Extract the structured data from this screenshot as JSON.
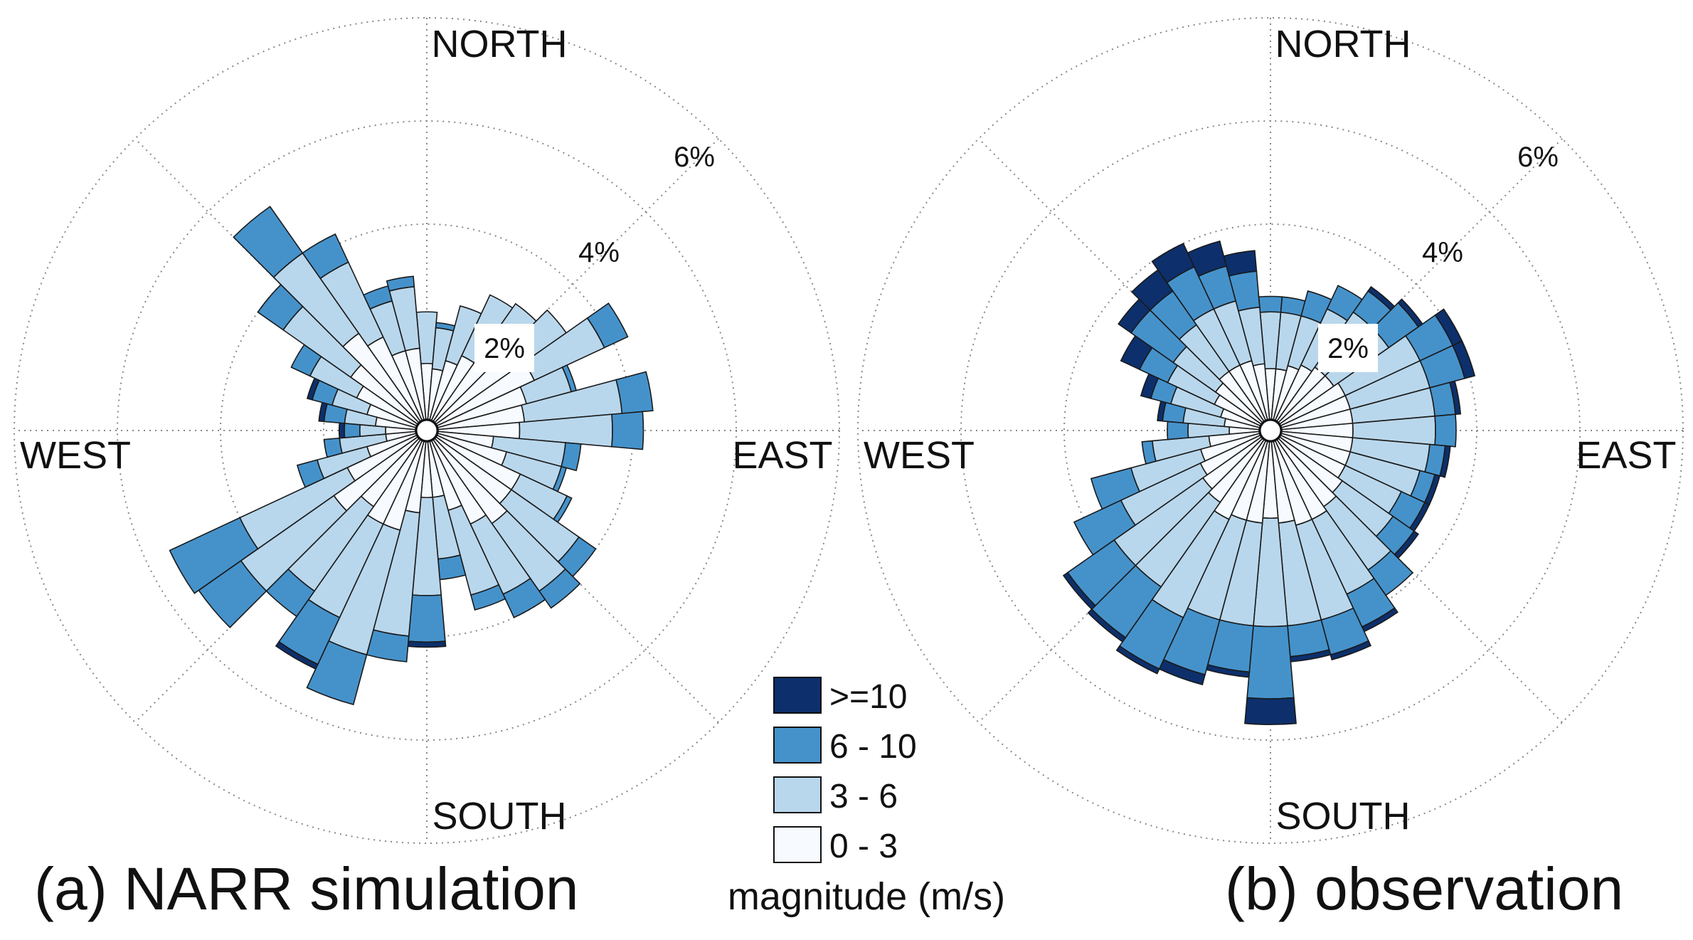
{
  "colors": {
    "bins": [
      "#f7fbff",
      "#b9d7ec",
      "#4592cb",
      "#0d2f6b"
    ],
    "label_box": "#ffffff"
  },
  "legend": {
    "title": "magnitude (m/s)",
    "items": [
      {
        "label": ">=10",
        "color": "#0d2f6b"
      },
      {
        "label": "6 - 10",
        "color": "#4592cb"
      },
      {
        "label": "3 - 6",
        "color": "#b9d7ec"
      },
      {
        "label": "0 - 3",
        "color": "#f7fbff"
      }
    ]
  },
  "chart_data": [
    {
      "type": "windrose",
      "title": "(a) NARR simulation",
      "directions": [
        "NORTH",
        "EAST",
        "SOUTH",
        "WEST"
      ],
      "rings": [
        2,
        4,
        6,
        8
      ],
      "ring_labels": [
        "2%",
        "4%",
        "6%"
      ],
      "max_radius_percent": 8,
      "sector_width_deg": 10,
      "sector_angles_deg": [
        0,
        10,
        20,
        30,
        40,
        50,
        60,
        70,
        80,
        90,
        100,
        110,
        120,
        130,
        140,
        150,
        160,
        170,
        180,
        190,
        200,
        210,
        220,
        230,
        240,
        250,
        260,
        270,
        280,
        290,
        300,
        310,
        320,
        330,
        340,
        350
      ],
      "bin_labels": [
        "0 - 3",
        "3 - 6",
        "6 - 10",
        ">=10"
      ],
      "cumulative_percent": [
        [
          1.3,
          2.3,
          2.3,
          2.3
        ],
        [
          1.2,
          2.0,
          2.1,
          2.1
        ],
        [
          1.4,
          2.5,
          2.5,
          2.5
        ],
        [
          1.6,
          2.9,
          2.9,
          2.9
        ],
        [
          1.8,
          3.0,
          3.0,
          3.0
        ],
        [
          2.2,
          3.3,
          3.3,
          3.3
        ],
        [
          2.3,
          3.8,
          4.3,
          4.3
        ],
        [
          2.0,
          2.9,
          3.0,
          3.0
        ],
        [
          1.9,
          3.8,
          4.4,
          4.4
        ],
        [
          1.8,
          3.6,
          4.2,
          4.2
        ],
        [
          1.3,
          2.7,
          3.0,
          3.0
        ],
        [
          1.6,
          2.7,
          2.8,
          2.8
        ],
        [
          2.0,
          3.0,
          3.1,
          3.1
        ],
        [
          2.0,
          3.6,
          4.0,
          4.0
        ],
        [
          2.2,
          3.8,
          4.2,
          4.2
        ],
        [
          2.0,
          3.5,
          4.0,
          4.0
        ],
        [
          1.6,
          3.3,
          3.6,
          3.6
        ],
        [
          1.3,
          2.5,
          2.9,
          2.9
        ],
        [
          1.3,
          3.2,
          4.1,
          4.2
        ],
        [
          1.6,
          4.0,
          4.5,
          4.5
        ],
        [
          2.0,
          4.5,
          5.5,
          5.5
        ],
        [
          2.0,
          4.0,
          5.0,
          5.1
        ],
        [
          1.8,
          3.8,
          4.4,
          4.4
        ],
        [
          2.2,
          4.4,
          5.4,
          5.4
        ],
        [
          1.7,
          4.0,
          5.5,
          5.5
        ],
        [
          1.2,
          2.2,
          2.6,
          2.6
        ],
        [
          0.8,
          1.7,
          2.0,
          2.0
        ],
        [
          0.8,
          1.3,
          1.6,
          1.7
        ],
        [
          1.0,
          1.6,
          2.0,
          2.1
        ],
        [
          1.2,
          1.9,
          2.3,
          2.4
        ],
        [
          1.5,
          2.5,
          2.9,
          2.9
        ],
        [
          1.8,
          3.4,
          4.0,
          4.0
        ],
        [
          2.3,
          4.2,
          5.3,
          5.3
        ],
        [
          2.0,
          3.6,
          4.2,
          4.2
        ],
        [
          1.6,
          2.6,
          2.9,
          2.9
        ],
        [
          1.6,
          2.8,
          3.0,
          3.0
        ]
      ]
    },
    {
      "type": "windrose",
      "title": "(b) observation",
      "directions": [
        "NORTH",
        "EAST",
        "SOUTH",
        "WEST"
      ],
      "rings": [
        2,
        4,
        6,
        8
      ],
      "ring_labels": [
        "2%",
        "4%",
        "6%"
      ],
      "max_radius_percent": 8,
      "sector_width_deg": 10,
      "sector_angles_deg": [
        0,
        10,
        20,
        30,
        40,
        50,
        60,
        70,
        80,
        90,
        100,
        110,
        120,
        130,
        140,
        150,
        160,
        170,
        180,
        190,
        200,
        210,
        220,
        230,
        240,
        250,
        260,
        270,
        280,
        290,
        300,
        310,
        320,
        330,
        340,
        350
      ],
      "bin_labels": [
        "0 - 3",
        "3 - 6",
        "6 - 10",
        ">=10"
      ],
      "cumulative_percent": [
        [
          1.2,
          2.3,
          2.6,
          2.6
        ],
        [
          1.2,
          2.3,
          2.6,
          2.6
        ],
        [
          1.3,
          2.3,
          2.8,
          2.8
        ],
        [
          1.4,
          2.6,
          3.1,
          3.1
        ],
        [
          1.5,
          2.8,
          3.3,
          3.4
        ],
        [
          1.5,
          2.8,
          3.5,
          3.6
        ],
        [
          1.6,
          3.2,
          3.9,
          4.1
        ],
        [
          1.6,
          3.2,
          3.9,
          4.1
        ],
        [
          1.6,
          3.2,
          3.6,
          3.7
        ],
        [
          1.6,
          3.2,
          3.6,
          3.6
        ],
        [
          1.6,
          3.1,
          3.4,
          3.5
        ],
        [
          1.6,
          3.0,
          3.3,
          3.4
        ],
        [
          1.6,
          2.8,
          3.3,
          3.4
        ],
        [
          1.7,
          2.9,
          3.4,
          3.5
        ],
        [
          1.8,
          3.3,
          3.9,
          3.9
        ],
        [
          1.9,
          3.5,
          4.2,
          4.3
        ],
        [
          1.9,
          3.8,
          4.5,
          4.6
        ],
        [
          1.8,
          3.8,
          4.4,
          4.5
        ],
        [
          1.7,
          3.8,
          5.2,
          5.7
        ],
        [
          1.8,
          3.8,
          4.7,
          4.8
        ],
        [
          1.8,
          3.8,
          4.9,
          5.1
        ],
        [
          1.9,
          4.0,
          5.1,
          5.2
        ],
        [
          1.7,
          3.7,
          4.9,
          5.0
        ],
        [
          1.6,
          3.7,
          4.8,
          4.9
        ],
        [
          1.5,
          3.2,
          4.2,
          4.2
        ],
        [
          1.4,
          2.8,
          3.6,
          3.6
        ],
        [
          1.2,
          2.3,
          2.5,
          2.5
        ],
        [
          0.8,
          1.6,
          2.0,
          2.0
        ],
        [
          0.9,
          1.7,
          2.1,
          2.2
        ],
        [
          1.0,
          2.0,
          2.4,
          2.6
        ],
        [
          1.2,
          2.2,
          2.8,
          3.2
        ],
        [
          1.3,
          2.3,
          3.3,
          3.6
        ],
        [
          1.4,
          2.5,
          3.3,
          3.8
        ],
        [
          1.4,
          2.6,
          3.5,
          4.0
        ],
        [
          1.4,
          2.6,
          3.3,
          3.8
        ],
        [
          1.3,
          2.4,
          3.1,
          3.5
        ]
      ]
    }
  ]
}
